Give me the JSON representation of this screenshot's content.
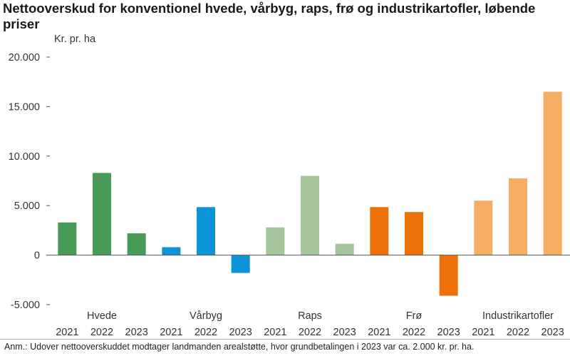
{
  "chart_data": {
    "type": "bar",
    "title": "Nettooverskud for konventionel hvede, vårbyg, raps, frø og industrikartofler, løbende priser",
    "ylabel": "Kr. pr. ha",
    "ylim": [
      -5000,
      20000
    ],
    "yticks": [
      20000,
      15000,
      10000,
      5000,
      0,
      -5000
    ],
    "ytick_labels": [
      "20.000",
      "15.000",
      "10.000",
      "5.000",
      "0",
      "-5.000"
    ],
    "grid": false,
    "legend": "none",
    "groups": [
      {
        "name": "Hvede",
        "color": "#4a9a57",
        "categories": [
          "2021",
          "2022",
          "2023"
        ],
        "values": [
          3300,
          8300,
          2200
        ]
      },
      {
        "name": "Vårbyg",
        "color": "#0d93d6",
        "categories": [
          "2021",
          "2022",
          "2023"
        ],
        "values": [
          800,
          4850,
          -1800
        ]
      },
      {
        "name": "Raps",
        "color": "#a4c59a",
        "categories": [
          "2021",
          "2022",
          "2023"
        ],
        "values": [
          2800,
          8000,
          1150
        ]
      },
      {
        "name": "Frø",
        "color": "#ee7008",
        "categories": [
          "2021",
          "2022",
          "2023"
        ],
        "values": [
          4850,
          4350,
          -4100
        ]
      },
      {
        "name": "Industrikartofler",
        "color": "#f6ad64",
        "categories": [
          "2021",
          "2022",
          "2023"
        ],
        "values": [
          5500,
          7750,
          16500
        ]
      }
    ]
  },
  "footnote": "Anm.: Udover nettooverskuddet modtager landmanden arealstøtte, hvor grundbetalingen i 2023 var ca. 2.000 kr. pr. ha."
}
